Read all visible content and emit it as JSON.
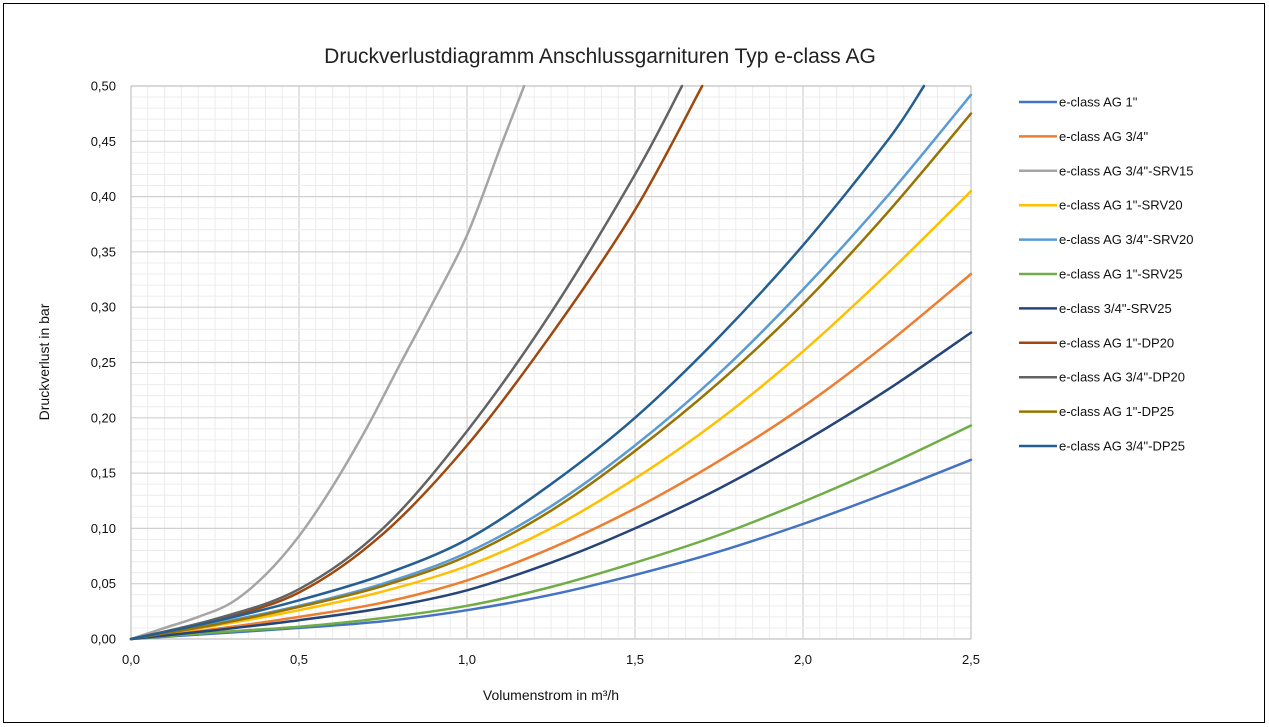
{
  "chart_data": {
    "type": "line",
    "title": "Druckverlustdiagramm Anschlussgarnituren Typ e-class AG",
    "xlabel": "Volumenstrom in m³/h",
    "ylabel": "Druckverlust in bar",
    "xlim": [
      0,
      2.5
    ],
    "ylim": [
      0,
      0.5
    ],
    "xticks": [
      "0,0",
      "0,5",
      "1,0",
      "1,5",
      "2,0",
      "2,5"
    ],
    "yticks": [
      "0,00",
      "0,05",
      "0,10",
      "0,15",
      "0,20",
      "0,25",
      "0,30",
      "0,35",
      "0,40",
      "0,45",
      "0,50"
    ],
    "grid": true,
    "legend": "right",
    "series": [
      {
        "name": "e-class AG 1\"",
        "color": "#4472C4",
        "x": [
          0,
          0.25,
          0.5,
          0.75,
          1.0,
          1.25,
          1.5,
          1.75,
          2.0,
          2.25,
          2.5
        ],
        "y": [
          0,
          0.005,
          0.01,
          0.016,
          0.026,
          0.04,
          0.058,
          0.079,
          0.104,
          0.132,
          0.162
        ]
      },
      {
        "name": "e-class AG 3/4\"",
        "color": "#ED7D31",
        "x": [
          0,
          0.25,
          0.5,
          0.75,
          1.0,
          1.25,
          1.5,
          1.75,
          2.0,
          2.25,
          2.5
        ],
        "y": [
          0,
          0.009,
          0.02,
          0.033,
          0.053,
          0.082,
          0.118,
          0.161,
          0.21,
          0.267,
          0.33
        ]
      },
      {
        "name": "e-class AG 3/4\"-SRV15",
        "color": "#A5A5A5",
        "x": [
          0,
          0.1,
          0.2,
          0.3,
          0.4,
          0.5,
          0.6,
          0.7,
          0.8,
          0.9,
          1.0,
          1.1,
          1.17
        ],
        "y": [
          0,
          0.01,
          0.02,
          0.033,
          0.058,
          0.093,
          0.138,
          0.19,
          0.248,
          0.305,
          0.365,
          0.445,
          0.5
        ]
      },
      {
        "name": "e-class AG 1\"-SRV20",
        "color": "#FFC000",
        "x": [
          0,
          0.25,
          0.5,
          0.75,
          1.0,
          1.25,
          1.5,
          1.75,
          2.0,
          2.25,
          2.5
        ],
        "y": [
          0,
          0.012,
          0.026,
          0.043,
          0.066,
          0.1,
          0.145,
          0.198,
          0.26,
          0.33,
          0.405
        ]
      },
      {
        "name": "e-class AG 3/4\"-SRV20",
        "color": "#5B9BD5",
        "x": [
          0,
          0.25,
          0.5,
          0.75,
          1.0,
          1.25,
          1.5,
          1.75,
          2.0,
          2.25,
          2.5
        ],
        "y": [
          0,
          0.014,
          0.03,
          0.05,
          0.078,
          0.12,
          0.175,
          0.24,
          0.316,
          0.4,
          0.492
        ]
      },
      {
        "name": "e-class AG 1\"-SRV25",
        "color": "#70AD47",
        "x": [
          0,
          0.25,
          0.5,
          0.75,
          1.0,
          1.25,
          1.5,
          1.75,
          2.0,
          2.25,
          2.5
        ],
        "y": [
          0,
          0.006,
          0.011,
          0.019,
          0.03,
          0.047,
          0.069,
          0.094,
          0.124,
          0.157,
          0.193
        ]
      },
      {
        "name": "e-class 3/4\"-SRV25",
        "color": "#264478",
        "x": [
          0,
          0.25,
          0.5,
          0.75,
          1.0,
          1.25,
          1.5,
          1.75,
          2.0,
          2.25,
          2.5
        ],
        "y": [
          0,
          0.008,
          0.017,
          0.028,
          0.044,
          0.069,
          0.1,
          0.136,
          0.178,
          0.225,
          0.277
        ]
      },
      {
        "name": "e-class AG 1\"-DP20",
        "color": "#9E480E",
        "x": [
          0,
          0.25,
          0.5,
          0.75,
          1.0,
          1.25,
          1.5,
          1.7
        ],
        "y": [
          0,
          0.017,
          0.042,
          0.095,
          0.175,
          0.275,
          0.388,
          0.5
        ]
      },
      {
        "name": "e-class AG 3/4\"-DP20",
        "color": "#636363",
        "x": [
          0,
          0.25,
          0.5,
          0.75,
          1.0,
          1.25,
          1.5,
          1.64
        ],
        "y": [
          0,
          0.018,
          0.045,
          0.1,
          0.188,
          0.295,
          0.42,
          0.5
        ]
      },
      {
        "name": "e-class AG 1\"-DP25",
        "color": "#997300",
        "x": [
          0,
          0.25,
          0.5,
          0.75,
          1.0,
          1.25,
          1.5,
          1.75,
          2.0,
          2.25,
          2.5
        ],
        "y": [
          0,
          0.013,
          0.029,
          0.048,
          0.075,
          0.116,
          0.17,
          0.232,
          0.303,
          0.385,
          0.475
        ]
      },
      {
        "name": "e-class AG 3/4\"-DP25",
        "color": "#255E91",
        "x": [
          0,
          0.25,
          0.5,
          0.75,
          1.0,
          1.25,
          1.5,
          1.75,
          2.0,
          2.25,
          2.36
        ],
        "y": [
          0,
          0.016,
          0.035,
          0.058,
          0.09,
          0.14,
          0.2,
          0.273,
          0.356,
          0.45,
          0.5
        ]
      }
    ]
  }
}
